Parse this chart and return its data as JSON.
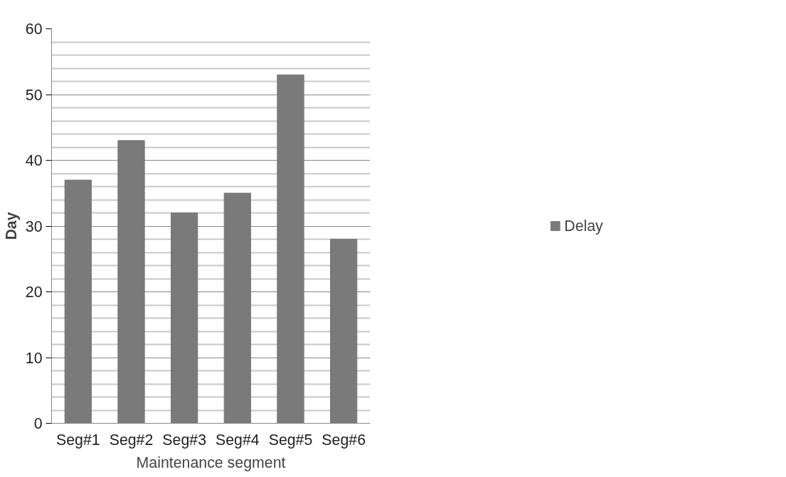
{
  "chart_data": {
    "type": "bar",
    "xlabel": "Maintenance segment",
    "ylabel": "Day",
    "categories": [
      "Seg#1",
      "Seg#2",
      "Seg#3",
      "Seg#4",
      "Seg#5",
      "Seg#6"
    ],
    "series": [
      {
        "name": "Delay",
        "color": "#7a7a7a",
        "values": [
          37,
          43,
          32,
          35,
          53,
          28
        ]
      }
    ],
    "ylim": [
      0,
      60
    ],
    "yticks": [
      0,
      {
        "value": 2,
        "label": null
      },
      {
        "value": 4,
        "label": null
      },
      {
        "value": 6,
        "label": null
      },
      {
        "value": 8,
        "label": null
      },
      10,
      {
        "value": 12,
        "label": null
      },
      {
        "value": 14,
        "label": null
      },
      {
        "value": 16,
        "label": null
      },
      {
        "value": 18,
        "label": null
      },
      20,
      {
        "value": 22,
        "label": null
      },
      {
        "value": 24,
        "label": null
      },
      {
        "value": 26,
        "label": null
      },
      {
        "value": 28,
        "label": null
      },
      30,
      {
        "value": 32,
        "label": null
      },
      {
        "value": 34,
        "label": null
      },
      {
        "value": 36,
        "label": null
      },
      {
        "value": 38,
        "label": null
      },
      40,
      {
        "value": 42,
        "label": null
      },
      {
        "value": 44,
        "label": null
      },
      {
        "value": 46,
        "label": null
      },
      {
        "value": 48,
        "label": null
      },
      50,
      {
        "value": 52,
        "label": null
      },
      {
        "value": 54,
        "label": null
      },
      {
        "value": 56,
        "label": null
      },
      {
        "value": 58,
        "label": null
      },
      60
    ],
    "grid": "y",
    "legend": "right"
  }
}
